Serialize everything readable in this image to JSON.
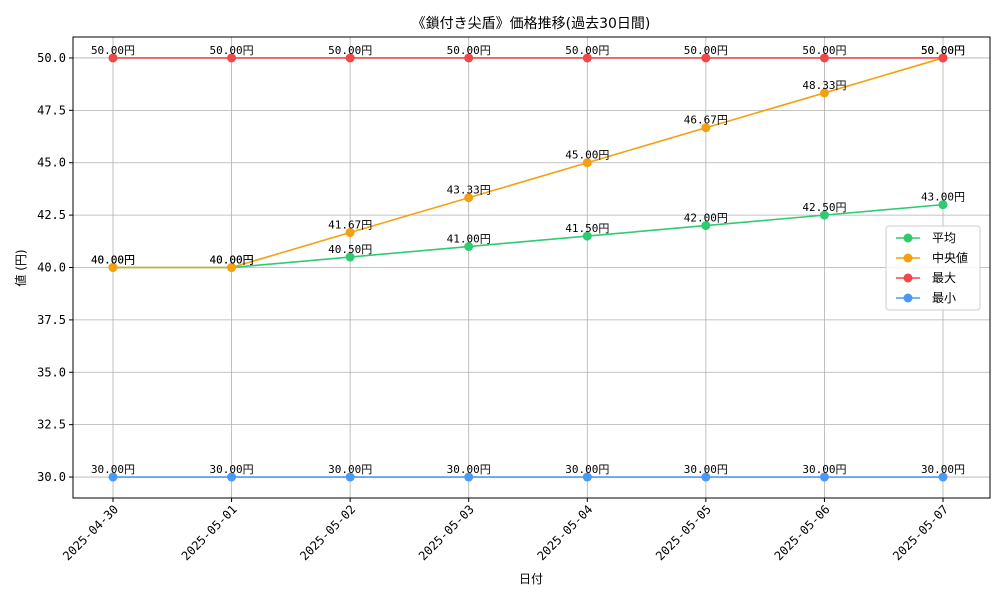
{
  "chart_data": {
    "type": "line",
    "title": "《鎖付き尖盾》価格推移(過去30日間)",
    "xlabel": "日付",
    "ylabel": "値 (円)",
    "ylim": [
      29,
      51
    ],
    "yticks": [
      "30.0",
      "32.5",
      "35.0",
      "37.5",
      "40.0",
      "42.5",
      "45.0",
      "47.5",
      "50.0"
    ],
    "ytick_values": [
      30,
      32.5,
      35,
      37.5,
      40,
      42.5,
      45,
      47.5,
      50
    ],
    "grid": true,
    "legend_position": "right",
    "categories": [
      "2025-04-30",
      "2025-05-01",
      "2025-05-02",
      "2025-05-03",
      "2025-05-04",
      "2025-05-05",
      "2025-05-06",
      "2025-05-07"
    ],
    "series": [
      {
        "name": "平均",
        "color": "#2ecc71",
        "values": [
          40.0,
          40.0,
          40.5,
          41.0,
          41.5,
          42.0,
          42.5,
          43.0
        ],
        "labels": [
          "40.00円",
          "40.00円",
          "40.50円",
          "41.00円",
          "41.50円",
          "42.00円",
          "42.50円",
          "43.00円"
        ]
      },
      {
        "name": "中央値",
        "color": "#f5a00f",
        "values": [
          40.0,
          40.0,
          41.67,
          43.33,
          45.0,
          46.67,
          48.33,
          50.0
        ],
        "labels": [
          "40.00円",
          "40.00円",
          "41.67円",
          "43.33円",
          "45.00円",
          "46.67円",
          "48.33円",
          "50.00円"
        ]
      },
      {
        "name": "最大",
        "color": "#f04848",
        "values": [
          50.0,
          50.0,
          50.0,
          50.0,
          50.0,
          50.0,
          50.0,
          50.0
        ],
        "labels": [
          "50.00円",
          "50.00円",
          "50.00円",
          "50.00円",
          "50.00円",
          "50.00円",
          "50.00円",
          "50.00円"
        ]
      },
      {
        "name": "最小",
        "color": "#4a9af5",
        "values": [
          30.0,
          30.0,
          30.0,
          30.0,
          30.0,
          30.0,
          30.0,
          30.0
        ],
        "labels": [
          "30.00円",
          "30.00円",
          "30.00円",
          "30.00円",
          "30.00円",
          "30.00円",
          "30.00円",
          "30.00円"
        ]
      }
    ]
  }
}
